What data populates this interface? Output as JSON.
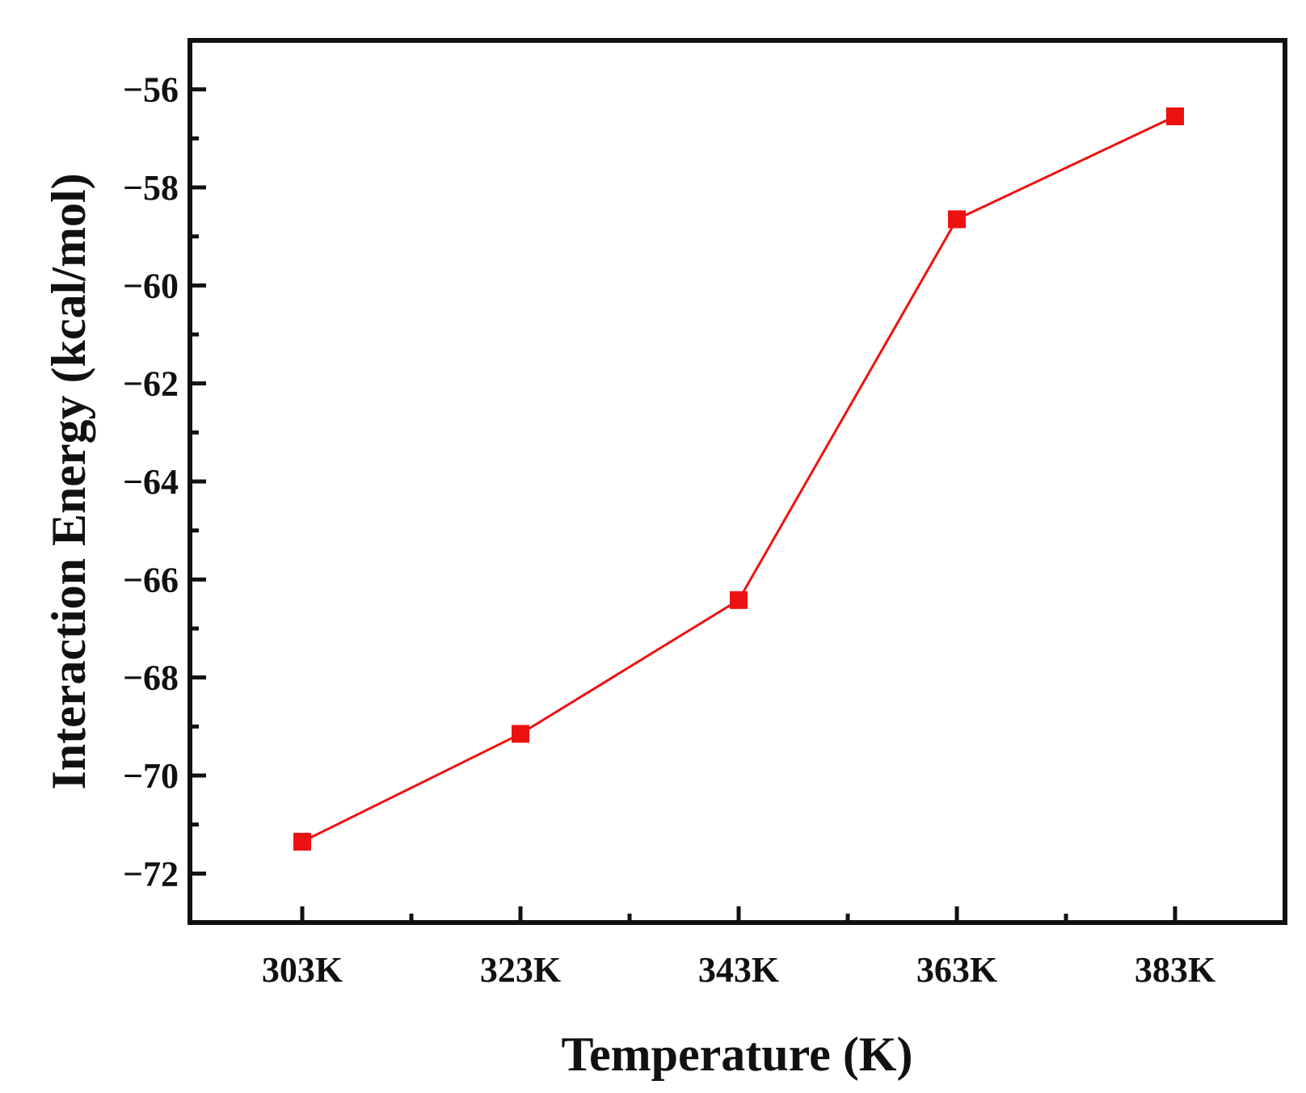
{
  "chart_data": {
    "type": "line",
    "title": "",
    "xlabel": "Temperature (K)",
    "ylabel": "Interaction Energy (kcal/mol)",
    "categories": [
      "303K",
      "323K",
      "343K",
      "363K",
      "383K"
    ],
    "series": [
      {
        "name": "Interaction Energy",
        "values": [
          -71.35,
          -69.15,
          -66.42,
          -58.65,
          -56.55
        ],
        "color": "#ee1111",
        "marker": "square"
      }
    ],
    "ylim": [
      -73,
      -55
    ],
    "yticks": [
      -72,
      -70,
      -68,
      -66,
      -64,
      -62,
      -60,
      -58,
      -56
    ],
    "ytick_labels": [
      "−72",
      "−70",
      "−68",
      "−66",
      "−64",
      "−62",
      "−60",
      "−58",
      "−56"
    ],
    "grid": false,
    "legend": "none"
  }
}
